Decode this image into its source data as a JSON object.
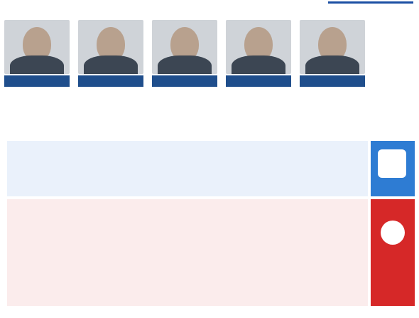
{
  "title": "",
  "rows": {
    "partners_label": "",
    "managers_label": "",
    "fees_label": ""
  },
  "bands": {
    "strength_label": "",
    "risk_label": ""
  },
  "columns": [
    {
      "fund": "",
      "caption": "",
      "partners": "",
      "managers": "",
      "fees": ""
    },
    {
      "fund": "",
      "caption": "",
      "partners": "",
      "managers": "",
      "fees": ""
    },
    {
      "fund": "",
      "caption": "",
      "partners": "",
      "managers": "",
      "fees": ""
    },
    {
      "fund": "",
      "caption": "",
      "partners": "",
      "managers": "",
      "fees": ""
    },
    {
      "fund": "",
      "caption": "",
      "partners": "",
      "managers": "",
      "fees": ""
    }
  ],
  "source": "",
  "colors": {
    "primary_blue": "#1f4e8c",
    "strength_blue": "#2e7cd3",
    "risk_red": "#d62828",
    "note_yellow": "#f1c40f"
  },
  "icons": {
    "strength": "thumbs-up-icon",
    "risk": "bomb-icon"
  }
}
